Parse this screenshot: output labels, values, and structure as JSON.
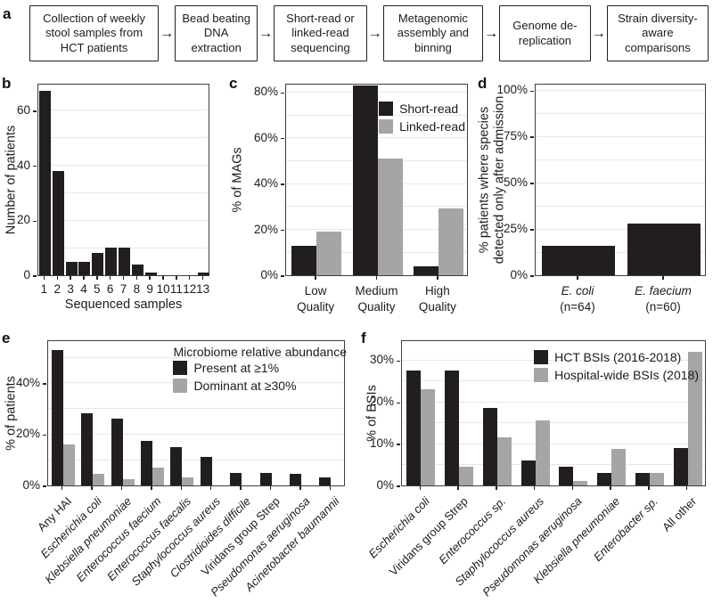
{
  "colors": {
    "bar_black": "#221e1f",
    "bar_gray": "#a5a5a5",
    "gridline": "#e8e8e8",
    "plot_border": "#3e3e3e",
    "text": "#1c1c1c"
  },
  "panel_a": {
    "letter": "a",
    "arrow": "→",
    "steps": [
      "Collection of weekly stool samples from HCT patients",
      "Bead beating DNA extraction",
      "Short-read or linked-read sequencing",
      "Metagenomic assembly and binning",
      "Genome de-replication",
      "Strain diversity-aware comparisons"
    ]
  },
  "chart_data": [
    {
      "id": "b",
      "letter": "b",
      "type": "bar",
      "xlabel": "Sequenced samples",
      "ylabel": "Number of patients",
      "categories": [
        "1",
        "2",
        "3",
        "4",
        "5",
        "6",
        "7",
        "8",
        "9",
        "10",
        "11",
        "12",
        "13"
      ],
      "series": [
        {
          "name": "Number of patients",
          "color": "black",
          "values": [
            67,
            38,
            5,
            5,
            8,
            10,
            10,
            4,
            1,
            0,
            0,
            0,
            1
          ]
        }
      ],
      "ylim": [
        0,
        70
      ],
      "yticks": [
        0,
        20,
        40,
        60
      ],
      "ytick_suffix": "",
      "grid_step": 10,
      "grid": true,
      "legend": null
    },
    {
      "id": "c",
      "letter": "c",
      "type": "bar",
      "xlabel": "",
      "ylabel": "% of MAGs",
      "categories": [
        "Low\nQuality",
        "Medium\nQuality",
        "High\nQuality"
      ],
      "series": [
        {
          "name": "Short-read",
          "color": "black",
          "values": [
            13,
            83,
            4
          ]
        },
        {
          "name": "Linked-read",
          "color": "gray",
          "values": [
            19,
            51,
            29
          ]
        }
      ],
      "ylim": [
        0,
        84
      ],
      "yticks": [
        0,
        20,
        40,
        60,
        80
      ],
      "ytick_suffix": "%",
      "grid_step": 10,
      "grid": true,
      "legend": {
        "title": null,
        "position": "top-right"
      }
    },
    {
      "id": "d",
      "letter": "d",
      "type": "bar",
      "xlabel": "",
      "ylabel": "% patients where species\ndetected only after admission",
      "categories": [
        {
          "name": "E. coli",
          "sub": "(n=64)",
          "italic": true
        },
        {
          "name": "E. faecium",
          "sub": "(n=60)",
          "italic": true
        }
      ],
      "series": [
        {
          "name": "% patients where species detected only after admission",
          "color": "black",
          "values": [
            16,
            28
          ]
        }
      ],
      "ylim": [
        0,
        104
      ],
      "yticks": [
        0,
        25,
        50,
        75,
        100
      ],
      "ytick_suffix": "%",
      "grid_step": 12.5,
      "grid": true,
      "legend": null
    },
    {
      "id": "e",
      "letter": "e",
      "type": "bar",
      "xlabel": "",
      "ylabel": "% of patients",
      "categories": [
        {
          "name": "Any HAI",
          "italic": false
        },
        {
          "name": "Escherichia coli",
          "italic": true
        },
        {
          "name": "Klebsiella pneumoniae",
          "italic": true
        },
        {
          "name": "Enterococcus faecium",
          "italic": true
        },
        {
          "name": "Enterococcus faecalis",
          "italic": true
        },
        {
          "name": "Staphylococcus aureus",
          "italic": true
        },
        {
          "name": "Clostridioides difficile",
          "italic": true
        },
        {
          "name": "Viridans group Strep",
          "italic": false
        },
        {
          "name": "Pseudomonas aeruginosa",
          "italic": true
        },
        {
          "name": "Acinetobacter baumannii",
          "italic": true
        }
      ],
      "series": [
        {
          "name": "Present at ≥1%",
          "color": "black",
          "values": [
            53,
            28,
            26,
            17.5,
            15,
            11,
            5,
            5,
            4.5,
            3
          ]
        },
        {
          "name": "Dominant at ≥30%",
          "color": "gray",
          "values": [
            16,
            4.5,
            2.5,
            7,
            3,
            0,
            0,
            0,
            0,
            0
          ]
        }
      ],
      "ylim": [
        0,
        57
      ],
      "yticks": [
        0,
        20,
        40
      ],
      "ytick_suffix": "%",
      "grid_step": 10,
      "grid": true,
      "legend": {
        "title": "Microbiome relative abundance",
        "position": "top-right"
      }
    },
    {
      "id": "f",
      "letter": "f",
      "type": "bar",
      "xlabel": "",
      "ylabel": "% of BSIs",
      "categories": [
        {
          "name": "Escherichia coli",
          "italic": true
        },
        {
          "name": "Viridans group Strep",
          "italic": false
        },
        {
          "name": "Enterococcus sp.",
          "italic": true
        },
        {
          "name": "Staphylococcus aureus",
          "italic": true
        },
        {
          "name": "Pseudomonas aeruginosa",
          "italic": true
        },
        {
          "name": "Klebsiella pneumoniae",
          "italic": true
        },
        {
          "name": "Enterobacter sp.",
          "italic": true
        },
        {
          "name": "All other",
          "italic": false
        }
      ],
      "series": [
        {
          "name": "HCT BSIs (2016-2018)",
          "color": "black",
          "values": [
            27.5,
            27.5,
            18.5,
            6,
            4.5,
            3,
            3,
            9
          ]
        },
        {
          "name": "Hospital-wide BSIs (2018)",
          "color": "gray",
          "values": [
            23,
            4.5,
            11.5,
            15.5,
            1,
            8.7,
            3,
            32
          ]
        }
      ],
      "ylim": [
        0,
        35
      ],
      "yticks": [
        0,
        10,
        20,
        30
      ],
      "ytick_suffix": "%",
      "grid_step": 5,
      "grid": true,
      "legend": {
        "title": null,
        "position": "top-right"
      }
    }
  ]
}
